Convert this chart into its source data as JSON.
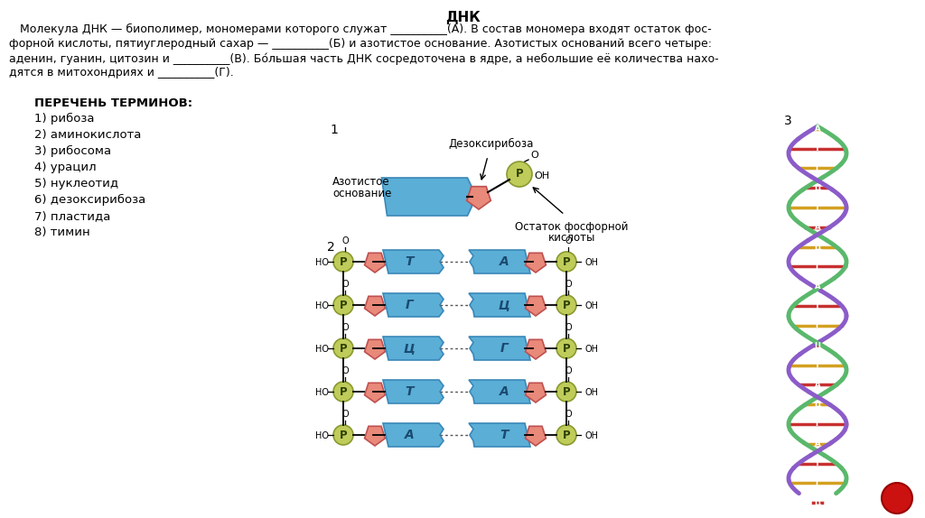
{
  "title": "ДНК",
  "bg_color": "#FFFFFF",
  "blue_color": "#5BAED6",
  "pink_color": "#E8897A",
  "green_color": "#BFCC5A",
  "base_pairs": [
    [
      "Т",
      "А"
    ],
    [
      "Г",
      "Ц"
    ],
    [
      "Ц",
      "Г"
    ],
    [
      "Т",
      "А"
    ],
    [
      "А",
      "Т"
    ]
  ],
  "main_text_lines": [
    "   Молекула ДНК — биополимер, мономерами которого служат __________(А). В состав мономера входят остаток фос-",
    "форной кислоты, пятиуглеродный сахар — __________(Б) и азотистое основание. Азотистых оснований всего четыре:",
    "аденин, гуанин, цитозин и __________(В). Бо́льшая часть ДНК сосредоточена в ядре, а небольшие её количества нахо-",
    "дятся в митохондриях и __________(Г)."
  ],
  "terms_title": "ПЕРЕЧЕНЬ ТЕРМИНОВ:",
  "terms": [
    "1) рибоза",
    "2) аминокислота",
    "3) рибосома",
    "4) урацил",
    "5) нуклеотид",
    "6) дезоксирибоза",
    "7) пластида",
    "8) тимин"
  ],
  "label1": "1",
  "label2": "2",
  "label3": "3",
  "label_azot_left": "Азотистое",
  "label_azot_right": "основание",
  "label_dezox": "Дезоксирибоза",
  "label_fosfat1": "Остаток фосфорной",
  "label_fosfat2": "кислоты"
}
